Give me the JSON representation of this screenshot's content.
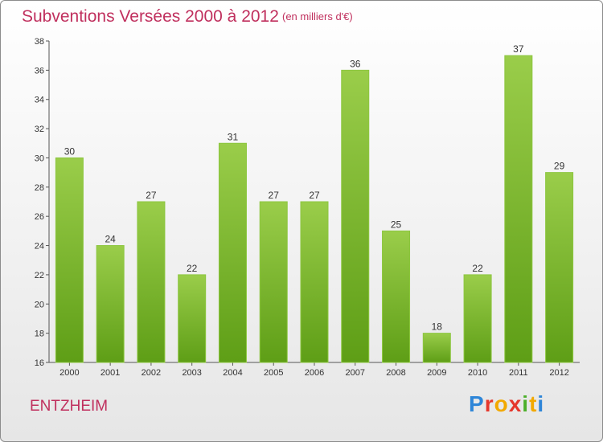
{
  "title": "Subventions Versées 2000 à 2012",
  "subtitle": "(en milliers d'€)",
  "commune": "ENTZHEIM",
  "logo": "Proxiti",
  "colors": {
    "bar_top": "#9acd4a",
    "bar_bottom": "#5e9e16",
    "title": "#c0305e"
  },
  "chart_data": {
    "type": "bar",
    "categories": [
      "2000",
      "2001",
      "2002",
      "2003",
      "2004",
      "2005",
      "2006",
      "2007",
      "2008",
      "2009",
      "2010",
      "2011",
      "2012"
    ],
    "values": [
      30,
      24,
      27,
      22,
      31,
      27,
      27,
      36,
      25,
      18,
      22,
      37,
      29
    ],
    "title": "Subventions Versées 2000 à 2012",
    "xlabel": "",
    "ylabel": "",
    "ylim": [
      16,
      38
    ],
    "yticks": [
      16,
      18,
      20,
      22,
      24,
      26,
      28,
      30,
      32,
      34,
      36,
      38
    ],
    "grid": false,
    "legend": "none"
  }
}
